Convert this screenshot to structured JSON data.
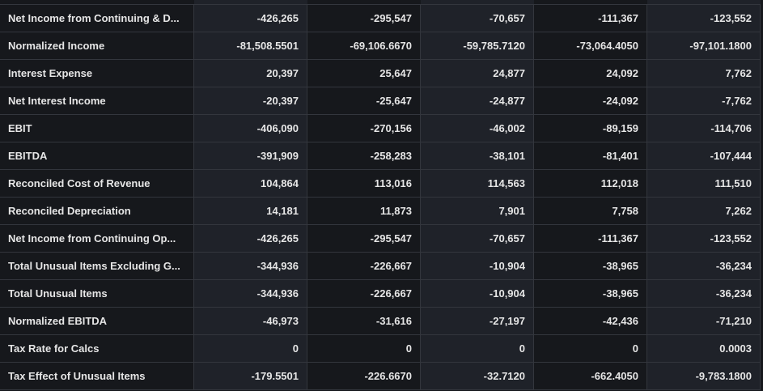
{
  "table": {
    "rows": [
      {
        "label": "Net Income from Continuing & D...",
        "values": [
          "-426,265",
          "-295,547",
          "-70,657",
          "-111,367",
          "-123,552"
        ]
      },
      {
        "label": "Normalized Income",
        "values": [
          "-81,508.5501",
          "-69,106.6670",
          "-59,785.7120",
          "-73,064.4050",
          "-97,101.1800"
        ]
      },
      {
        "label": "Interest Expense",
        "values": [
          "20,397",
          "25,647",
          "24,877",
          "24,092",
          "7,762"
        ]
      },
      {
        "label": "Net Interest Income",
        "values": [
          "-20,397",
          "-25,647",
          "-24,877",
          "-24,092",
          "-7,762"
        ]
      },
      {
        "label": "EBIT",
        "values": [
          "-406,090",
          "-270,156",
          "-46,002",
          "-89,159",
          "-114,706"
        ]
      },
      {
        "label": "EBITDA",
        "values": [
          "-391,909",
          "-258,283",
          "-38,101",
          "-81,401",
          "-107,444"
        ]
      },
      {
        "label": "Reconciled Cost of Revenue",
        "values": [
          "104,864",
          "113,016",
          "114,563",
          "112,018",
          "111,510"
        ]
      },
      {
        "label": "Reconciled Depreciation",
        "values": [
          "14,181",
          "11,873",
          "7,901",
          "7,758",
          "7,262"
        ]
      },
      {
        "label": "Net Income from Continuing Op...",
        "values": [
          "-426,265",
          "-295,547",
          "-70,657",
          "-111,367",
          "-123,552"
        ]
      },
      {
        "label": "Total Unusual Items Excluding G...",
        "values": [
          "-344,936",
          "-226,667",
          "-10,904",
          "-38,965",
          "-36,234"
        ]
      },
      {
        "label": "Total Unusual Items",
        "values": [
          "-344,936",
          "-226,667",
          "-10,904",
          "-38,965",
          "-36,234"
        ]
      },
      {
        "label": "Normalized EBITDA",
        "values": [
          "-46,973",
          "-31,616",
          "-27,197",
          "-42,436",
          "-71,210"
        ]
      },
      {
        "label": "Tax Rate for Calcs",
        "values": [
          "0",
          "0",
          "0",
          "0",
          "0.0003"
        ]
      },
      {
        "label": "Tax Effect of Unusual Items",
        "values": [
          "-179.5501",
          "-226.6670",
          "-32.7120",
          "-662.4050",
          "-9,783.1800"
        ]
      }
    ]
  }
}
